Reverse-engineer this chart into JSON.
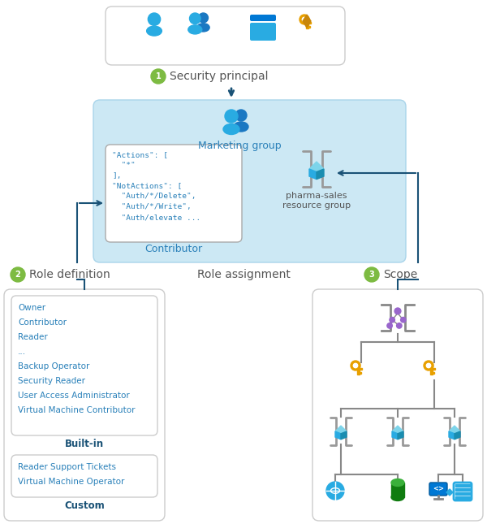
{
  "bg_color": "#ffffff",
  "light_blue_box": "#cce8f4",
  "text_blue": "#2980b9",
  "text_dark": "#555555",
  "text_gray": "#555555",
  "green_badge": "#7dbb42",
  "arrow_blue": "#1a5276",
  "title_1": "Security principal",
  "title_2": "Role definition",
  "title_3": "Role assignment",
  "title_4": "Scope",
  "marketing_label": "Marketing group",
  "contributor_label": "Contributor",
  "pharma_label": "pharma-sales\nresource group",
  "builtin_label": "Built-in",
  "custom_label": "Custom",
  "code_text": "\"Actions\": [\n  \"*\"\n],\n\"NotActions\": [\n  \"Auth/*/Delete\",\n  \"Auth/*/Write\",\n  \"Auth/elevate ...",
  "builtin_items": [
    "Owner",
    "Contributor",
    "Reader",
    "...",
    "Backup Operator",
    "Security Reader",
    "User Access Administrator",
    "Virtual Machine Contributor"
  ],
  "custom_items": [
    "Reader Support Tickets",
    "Virtual Machine Operator"
  ],
  "person_color": "#29abe2",
  "person_color2": "#1a78c2",
  "key_color": "#e8a000",
  "cube_color": "#29abe2",
  "cube_gray": "#aaaaaa",
  "globe_color": "#29abe2",
  "cyl_color": "#107c10",
  "cyl_top_color": "#3ab03a",
  "box_blue": "#0078d4",
  "stripe_border": "#29abe2"
}
